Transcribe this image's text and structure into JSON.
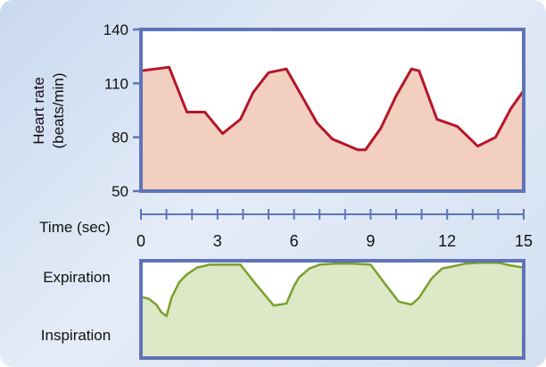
{
  "chart_data": [
    {
      "type": "area",
      "ylabel_line1": "Heart rate",
      "ylabel_line2": "(beats/min)",
      "xlabel": "Time (sec)",
      "ylim": [
        50,
        140
      ],
      "xlim": [
        0,
        15
      ],
      "yticks": [
        "50",
        "80",
        "110",
        "140"
      ],
      "xticks": [
        "0",
        "3",
        "6",
        "9",
        "12",
        "15"
      ],
      "x_minor_step": 1,
      "x": [
        0,
        1.1,
        1.8,
        2.5,
        3.2,
        3.9,
        4.4,
        5.0,
        5.7,
        6.3,
        6.9,
        7.5,
        8.5,
        8.8,
        9.4,
        10.0,
        10.6,
        10.9,
        11.6,
        12.4,
        13.2,
        13.9,
        14.5,
        15.0
      ],
      "values": [
        117,
        119,
        94,
        94,
        82,
        90,
        105,
        116,
        118,
        103,
        88,
        79,
        73,
        73,
        85,
        103,
        118,
        117,
        90,
        86,
        75,
        80,
        96,
        106
      ],
      "colors": {
        "line": "#b5162a",
        "fill": "#f3cfc0",
        "axis": "#5f74b8"
      }
    },
    {
      "type": "area",
      "labels": {
        "top": "Expiration",
        "bottom": "Inspiration"
      },
      "ylim": [
        0,
        1
      ],
      "xlim": [
        0,
        15
      ],
      "x": [
        0,
        0.3,
        0.6,
        0.8,
        1.0,
        1.2,
        1.5,
        1.8,
        2.2,
        2.7,
        3.2,
        3.9,
        4.5,
        5.2,
        5.7,
        6.0,
        6.2,
        6.6,
        7.0,
        7.6,
        8.3,
        9.0,
        9.6,
        10.1,
        10.6,
        10.9,
        11.4,
        11.8,
        12.2,
        12.7,
        13.3,
        14.0,
        14.5,
        15.0
      ],
      "values": [
        0.63,
        0.61,
        0.55,
        0.47,
        0.43,
        0.62,
        0.78,
        0.86,
        0.93,
        0.96,
        0.96,
        0.96,
        0.76,
        0.54,
        0.56,
        0.74,
        0.83,
        0.92,
        0.96,
        0.97,
        0.97,
        0.96,
        0.75,
        0.58,
        0.55,
        0.62,
        0.82,
        0.92,
        0.94,
        0.97,
        0.98,
        0.98,
        0.95,
        0.93
      ],
      "colors": {
        "line": "#7aa02c",
        "fill": "#dde8c6",
        "axis": "#5f74b8"
      }
    }
  ]
}
